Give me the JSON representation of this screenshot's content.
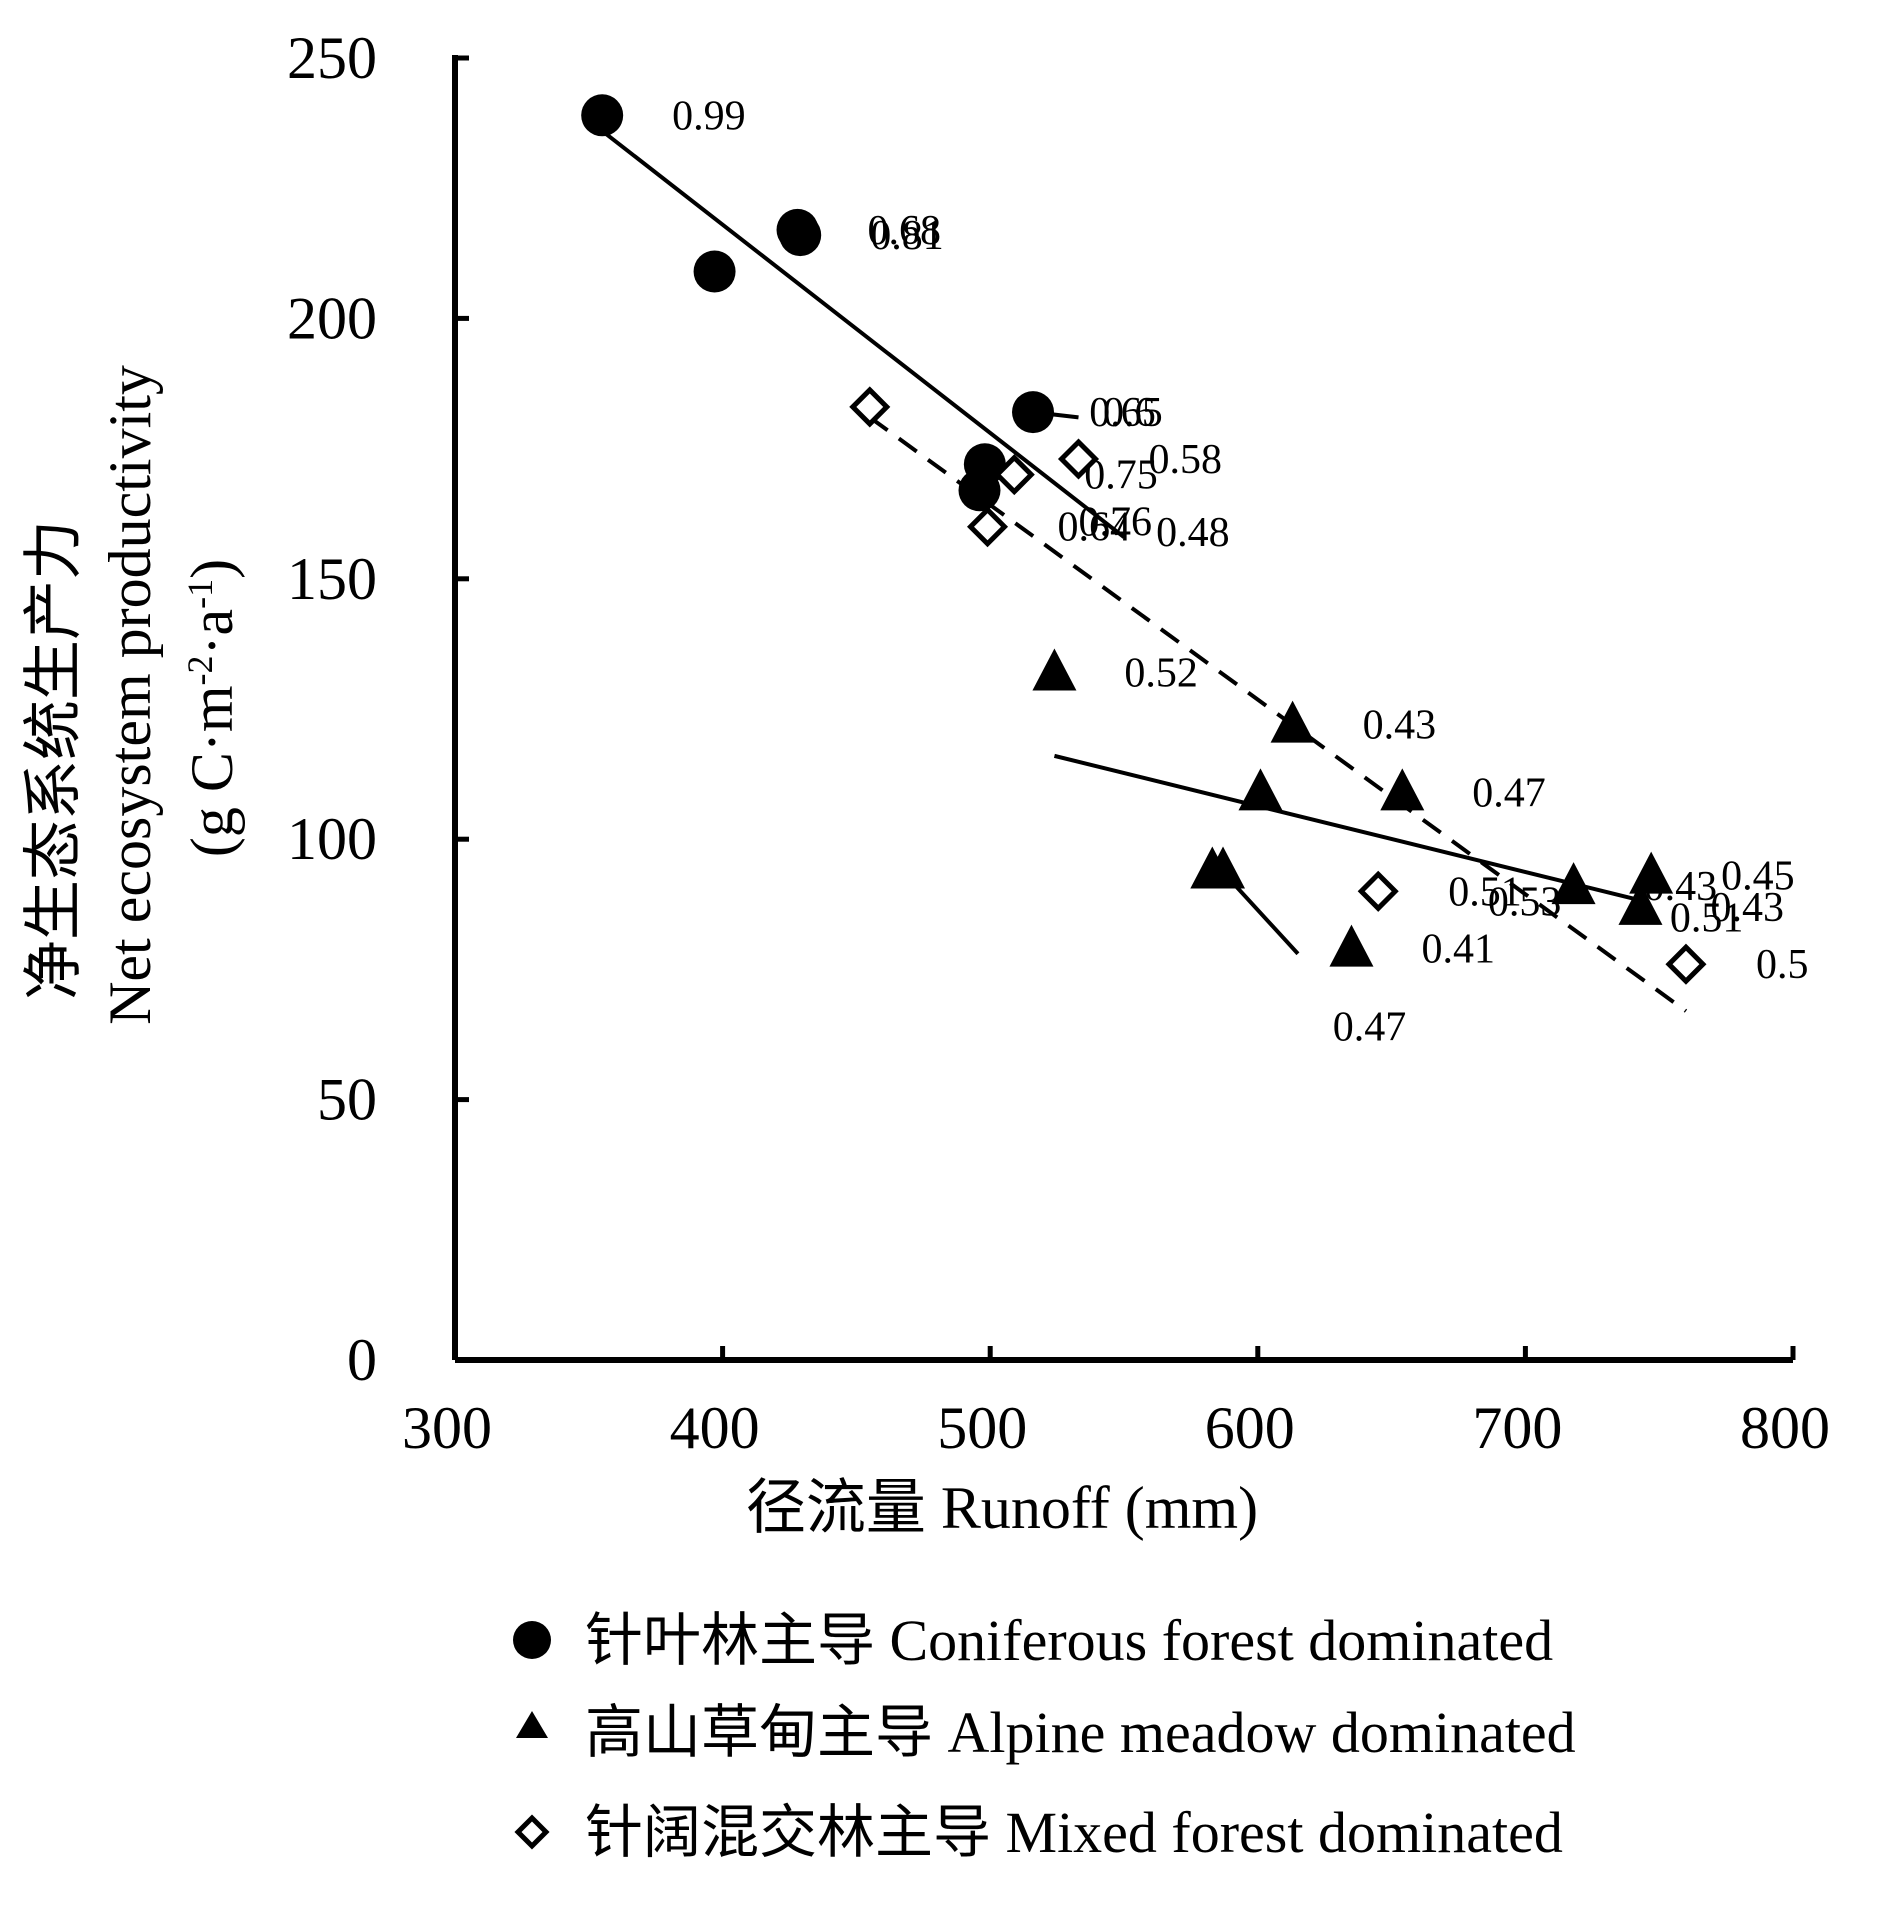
{
  "chart_data": {
    "type": "scatter",
    "xlim": [
      300,
      800
    ],
    "ylim": [
      0,
      250
    ],
    "xticks": [
      300,
      400,
      500,
      600,
      700,
      800
    ],
    "yticks": [
      0,
      50,
      100,
      150,
      200,
      250
    ],
    "xlabel": "径流量 Runoff (mm)",
    "ylabel_line1": "净生态系统生产力",
    "ylabel_line2": "Net ecosystem productivity",
    "ylabel_line3_prefix": "(g C·m",
    "ylabel_line3_sup1": "-2",
    "ylabel_line3_mid": "·a",
    "ylabel_line3_sup2": "-1",
    "ylabel_line3_suffix": ")",
    "grid": false,
    "legend_position": "bottom",
    "series": [
      {
        "name": "针叶林主导 Coniferous forest dominated",
        "marker": "circle-filled",
        "points": [
          {
            "x": 355,
            "y": 239,
            "label": "0.99"
          },
          {
            "x": 397,
            "y": 209,
            "label": ""
          },
          {
            "x": 428,
            "y": 217,
            "label": "0.68"
          },
          {
            "x": 429,
            "y": 216,
            "label": "0.81"
          },
          {
            "x": 498,
            "y": 172,
            "label": ""
          },
          {
            "x": 496,
            "y": 167,
            "label": ""
          },
          {
            "x": 516,
            "y": 182,
            "label": "0.6"
          }
        ],
        "trend": {
          "x": [
            355,
            550
          ],
          "y": [
            236,
            158
          ],
          "style": "solid"
        },
        "extra_segments": [
          {
            "x": [
              516,
              533
            ],
            "y": [
              182,
              181
            ]
          }
        ]
      },
      {
        "name": "高山草甸主导 Alpine meadow dominated",
        "marker": "triangle-filled",
        "points": [
          {
            "x": 524,
            "y": 132,
            "label": "0.52"
          },
          {
            "x": 613,
            "y": 122,
            "label": "0.43"
          },
          {
            "x": 601,
            "y": 109,
            "label": ""
          },
          {
            "x": 654,
            "y": 109,
            "label": "0.47"
          },
          {
            "x": 583,
            "y": 94,
            "label": ""
          },
          {
            "x": 587,
            "y": 94,
            "label": ""
          },
          {
            "x": 635,
            "y": 79,
            "label": "0.41"
          },
          {
            "x": 718,
            "y": 91,
            "label": "0.43"
          },
          {
            "x": 747,
            "y": 93,
            "label": "0.45"
          },
          {
            "x": 743,
            "y": 87,
            "label": "0.43"
          }
        ],
        "trend": {
          "x": [
            524,
            745
          ],
          "y": [
            116,
            88
          ],
          "style": "solid"
        },
        "extra_segments": [
          {
            "x": [
              590,
              615
            ],
            "y": [
              92,
              78
            ]
          }
        ],
        "extra_labels": [
          {
            "x": 628,
            "y": 64,
            "label": "0.47"
          }
        ]
      },
      {
        "name": "针阔混交林主导 Mixed forest dominated",
        "marker": "diamond-open",
        "points": [
          {
            "x": 455,
            "y": 183,
            "label": ""
          },
          {
            "x": 533,
            "y": 173,
            "label": "0.58"
          },
          {
            "x": 509,
            "y": 170,
            "label": "0.75"
          },
          {
            "x": 499,
            "y": 160,
            "label": "0.64"
          },
          {
            "x": 645,
            "y": 90,
            "label": "0.51"
          },
          {
            "x": 760,
            "y": 76,
            "label": "0.5"
          }
        ],
        "trend": {
          "x": [
            455,
            760
          ],
          "y": [
            181,
            67
          ],
          "style": "dashed"
        },
        "extra_labels": [
          {
            "x": 533,
            "y": 161,
            "label": "0.76"
          },
          {
            "x": 562,
            "y": 159,
            "label": "0.48"
          },
          {
            "x": 686,
            "y": 88,
            "label": "0.53"
          },
          {
            "x": 754,
            "y": 85,
            "label": "0.51"
          },
          {
            "x": 537,
            "y": 182,
            "label": "0.65"
          }
        ]
      }
    ]
  }
}
